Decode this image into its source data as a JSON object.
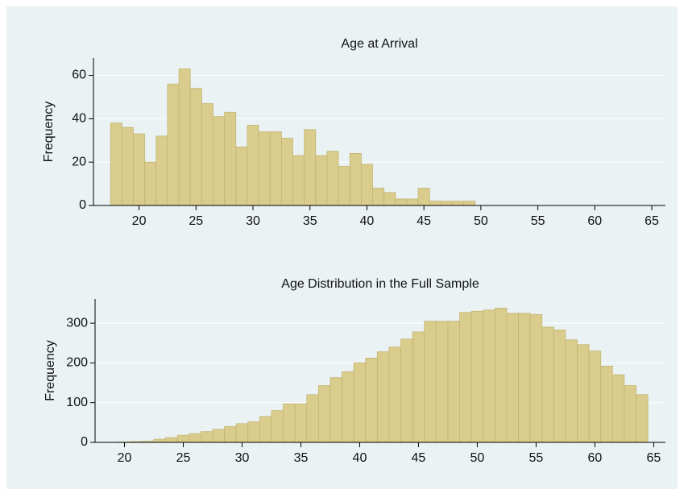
{
  "chart_data": [
    {
      "type": "histogram",
      "title": "Age at Arrival",
      "y_label": "Frequency",
      "color": "#d9cc8c",
      "bins": [
        17.5,
        18.5,
        19.5,
        20.5,
        21.5,
        22.5,
        23.5,
        24.5,
        25.5,
        26.5,
        27.5,
        28.5,
        29.5,
        30.5,
        31.5,
        32.5,
        33.5,
        34.5,
        35.5,
        36.5,
        37.5,
        38.5,
        39.5,
        40.5,
        41.5,
        42.5,
        43.5,
        44.5,
        45.5,
        46.5,
        47.5,
        48.5,
        49.5
      ],
      "values": [
        38,
        36,
        33,
        20,
        32,
        56,
        63,
        54,
        47,
        41,
        43,
        27,
        37,
        34,
        34,
        31,
        23,
        35,
        23,
        25,
        18,
        24,
        19,
        8,
        6,
        3,
        3,
        8,
        2,
        2,
        2,
        2
      ],
      "xlim": [
        16,
        66.2
      ],
      "ylim": [
        0,
        68
      ],
      "xticks": [
        20,
        25,
        30,
        35,
        40,
        45,
        50,
        55,
        60,
        65
      ],
      "yticks": [
        0,
        20,
        40,
        60
      ],
      "grid": true
    },
    {
      "type": "histogram",
      "title": "Age Distribution in the Full Sample",
      "y_label": "Frequency",
      "color": "#d9cc8c",
      "bins": [
        19.5,
        20.5,
        21.5,
        22.5,
        23.5,
        24.5,
        25.5,
        26.5,
        27.5,
        28.5,
        29.5,
        30.5,
        31.5,
        32.5,
        33.5,
        34.5,
        35.5,
        36.5,
        37.5,
        38.5,
        39.5,
        40.5,
        41.5,
        42.5,
        43.5,
        44.5,
        45.5,
        46.5,
        47.5,
        48.5,
        49.5,
        50.5,
        51.5,
        52.5,
        53.5,
        54.5,
        55.5,
        56.5,
        57.5,
        58.5,
        59.5,
        60.5,
        61.5,
        62.5,
        63.5,
        64.5
      ],
      "values": [
        1,
        2,
        3,
        8,
        12,
        18,
        22,
        27,
        33,
        40,
        47,
        52,
        65,
        80,
        97,
        97,
        120,
        143,
        163,
        178,
        200,
        212,
        228,
        240,
        260,
        278,
        305,
        305,
        305,
        327,
        330,
        333,
        338,
        325,
        325,
        322,
        290,
        283,
        258,
        246,
        230,
        192,
        170,
        143,
        120
      ],
      "xlim": [
        17.5,
        66
      ],
      "ylim": [
        0,
        361
      ],
      "xticks": [
        20,
        25,
        30,
        35,
        40,
        45,
        50,
        55,
        60,
        65
      ],
      "yticks": [
        0,
        100,
        200,
        300
      ],
      "grid": true
    }
  ]
}
